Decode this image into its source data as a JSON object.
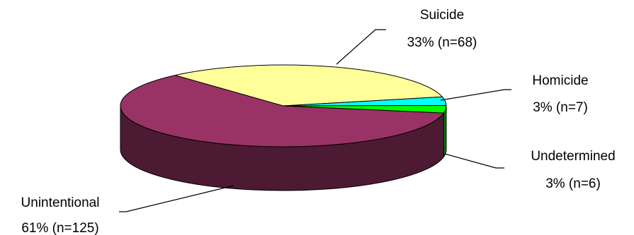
{
  "chart_data": {
    "type": "pie",
    "style": "3d-exploded-none",
    "title": "",
    "slices": [
      {
        "name": "Unintentional",
        "percent_label": "61% (n=125)",
        "value": 125,
        "color": "#993366",
        "side_color": "#4D1A33"
      },
      {
        "name": "Suicide",
        "percent_label": "33% (n=68)",
        "value": 68,
        "color": "#FFFF99",
        "side_color": "#80804D"
      },
      {
        "name": "Homicide",
        "percent_label": "3% (n=7)",
        "value": 7,
        "color": "#00FFFF",
        "side_color": "#008080"
      },
      {
        "name": "Undetermined",
        "percent_label": "3% (n=6)",
        "value": 6,
        "color": "#00FF00",
        "side_color": "#008000"
      }
    ]
  }
}
